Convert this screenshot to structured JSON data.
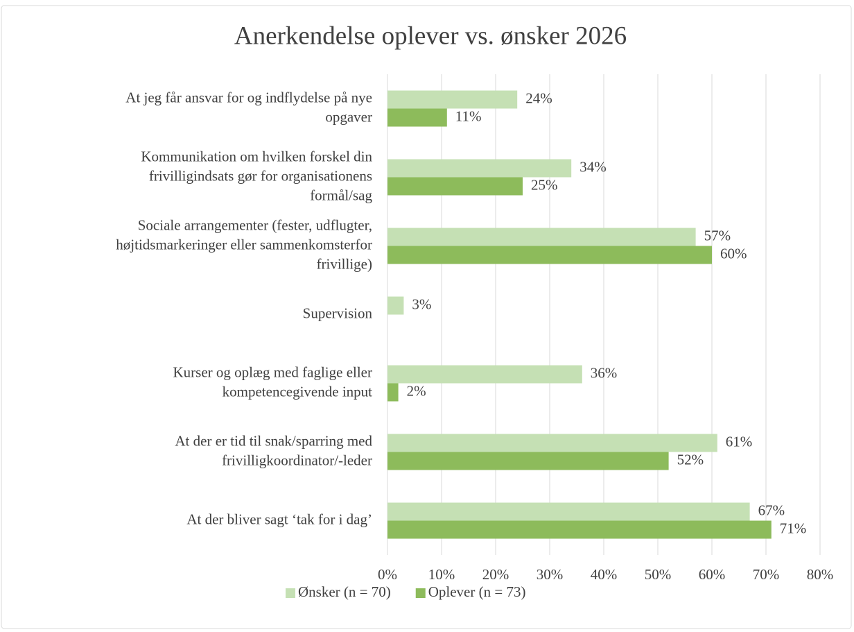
{
  "chart_data": {
    "type": "bar",
    "orientation": "horizontal",
    "title": "Anerkendelse oplever vs. ønsker 2026",
    "categories": [
      [
        "At jeg får ansvar for og indflydelse på nye",
        "opgaver"
      ],
      [
        "Kommunikation om hvilken forskel din",
        "frivilligindsats gør for organisationens",
        "formål/sag"
      ],
      [
        "Sociale arrangementer (fester, udflugter,",
        "højtidsmarkeringer eller sammenkomsterfor",
        "frivillige)"
      ],
      [
        "Supervision"
      ],
      [
        "Kurser og oplæg med faglige eller",
        "kompetencegivende input"
      ],
      [
        "At der er tid til snak/sparring med",
        "frivilligkoordinator/-leder"
      ],
      [
        "At der bliver sagt ‘tak for i dag’"
      ]
    ],
    "series": [
      {
        "name": "Ønsker (n = 70)",
        "color": "#c5e0b4",
        "values": [
          24,
          34,
          57,
          3,
          36,
          61,
          67
        ],
        "value_labels": [
          "24%",
          "34%",
          "57%",
          "3%",
          "36%",
          "61%",
          "67%"
        ]
      },
      {
        "name": "Oplever (n = 73)",
        "color": "#8dbb5b",
        "values": [
          11,
          25,
          60,
          null,
          2,
          52,
          71
        ],
        "value_labels": [
          "11%",
          "25%",
          "60%",
          null,
          "2%",
          "52%",
          "71%"
        ]
      }
    ],
    "xlim": [
      0,
      80
    ],
    "xticks": [
      {
        "value": 0,
        "label": "0%"
      },
      {
        "value": 10,
        "label": "10%"
      },
      {
        "value": 20,
        "label": "20%"
      },
      {
        "value": 30,
        "label": "30%"
      },
      {
        "value": 40,
        "label": "40%"
      },
      {
        "value": 50,
        "label": "50%"
      },
      {
        "value": 60,
        "label": "60%"
      },
      {
        "value": 70,
        "label": "70%"
      },
      {
        "value": 80,
        "label": "80%"
      }
    ],
    "grid": true,
    "legend": "bottom"
  }
}
